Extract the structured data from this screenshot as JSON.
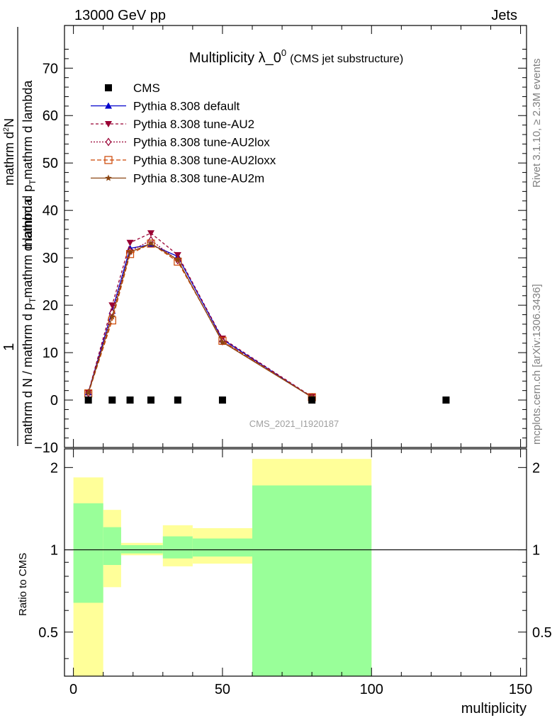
{
  "header": {
    "left": "13000 GeV pp",
    "right": "Jets"
  },
  "side_labels": {
    "rivet": "Rivet 3.1.10, ≥ 2.3M events",
    "mcplots": "mcplots.cern.ch [arXiv:1306.3436]"
  },
  "chart_data": {
    "type": "line",
    "title_main": "Multiplicity λ_0",
    "title_sup": "0",
    "title_sub": "(CMS jet substructure)",
    "analysis_label": "CMS_2021_I1920187",
    "xlabel": "multiplicity",
    "ylabel_numer": "1",
    "ylabel_denom_main": "mathrm d N / mathrm d p",
    "ylabel_denom_sub": "T",
    "ylabel_denom_end": "mathrm d lambda",
    "ylabel_top_left": "mathrm d",
    "ylabel_top_sup": "2",
    "ylabel_top_right": "N",
    "ylabel_top2_main": "mathrm d p",
    "ylabel_top2_sub": "T",
    "ylabel_top2_end": "mathrm d lambda",
    "ratio_ylabel": "Ratio to CMS",
    "xlim": [
      -3,
      152
    ],
    "ylim": [
      -10,
      79
    ],
    "ratio_ylim": [
      0.345,
      2.34
    ],
    "x_ticks": [
      "0",
      "50",
      "100",
      "150"
    ],
    "y_ticks": [
      "−10",
      "0",
      "10",
      "20",
      "30",
      "40",
      "50",
      "60",
      "70"
    ],
    "ratio_ticks": [
      "0.5",
      "1",
      "2"
    ],
    "ratio_ticks_right": [
      "0.5",
      "1",
      "2"
    ],
    "cms": {
      "name": "CMS",
      "color": "#000000",
      "x": [
        5,
        13,
        19,
        26,
        35,
        50,
        80,
        125
      ],
      "y": [
        0,
        0,
        0,
        0,
        0,
        0,
        0,
        0
      ]
    },
    "series": [
      {
        "name": "Pythia 8.308 default",
        "color": "#0000cc",
        "dash": "",
        "marker": "triangle-up",
        "x": [
          5,
          13,
          19,
          26,
          35,
          50,
          80
        ],
        "y": [
          1.6,
          18.8,
          32.0,
          32.8,
          30.3,
          12.8,
          0.6
        ]
      },
      {
        "name": "Pythia 8.308 tune-AU2",
        "color": "#990033",
        "dash": "4,3",
        "marker": "triangle-down",
        "x": [
          5,
          13,
          19,
          26,
          35,
          50,
          80
        ],
        "y": [
          1.6,
          20.0,
          33.2,
          35.2,
          30.6,
          13.0,
          0.7
        ]
      },
      {
        "name": "Pythia 8.308 tune-AU2lox",
        "color": "#990033",
        "dash": "2,2",
        "marker": "diamond",
        "x": [
          5,
          13,
          19,
          26,
          35,
          50,
          80
        ],
        "y": [
          1.5,
          18.4,
          31.4,
          33.7,
          29.5,
          12.4,
          0.6
        ]
      },
      {
        "name": "Pythia 8.308 tune-AU2loxx",
        "color": "#cc4400",
        "dash": "6,3",
        "marker": "square-open",
        "x": [
          5,
          13,
          19,
          26,
          35,
          50,
          80
        ],
        "y": [
          1.4,
          16.8,
          30.8,
          33.0,
          29.2,
          12.5,
          0.6
        ]
      },
      {
        "name": "Pythia 8.308 tune-AU2m",
        "color": "#8b4513",
        "dash": "",
        "marker": "star",
        "x": [
          5,
          13,
          19,
          26,
          35,
          50,
          80
        ],
        "y": [
          1.5,
          17.6,
          31.2,
          33.0,
          29.6,
          12.2,
          0.6
        ]
      }
    ],
    "ratio_bands": [
      {
        "x0": 0,
        "x1": 10,
        "yellow": [
          0.345,
          1.84
        ],
        "green": [
          0.64,
          1.48
        ]
      },
      {
        "x0": 10,
        "x1": 16,
        "yellow": [
          0.73,
          1.4
        ],
        "green": [
          0.88,
          1.21
        ]
      },
      {
        "x0": 16,
        "x1": 30,
        "yellow": [
          0.955,
          1.06
        ],
        "green": [
          0.97,
          1.04
        ]
      },
      {
        "x0": 30,
        "x1": 40,
        "yellow": [
          0.87,
          1.23
        ],
        "green": [
          0.93,
          1.12
        ]
      },
      {
        "x0": 40,
        "x1": 60,
        "yellow": [
          0.89,
          1.2
        ],
        "green": [
          0.945,
          1.1
        ]
      },
      {
        "x0": 60,
        "x1": 100,
        "yellow": [
          0.345,
          2.15
        ],
        "green": [
          0.345,
          1.72
        ]
      }
    ],
    "colors": {
      "yellow": "#ffff99",
      "green": "#99ff99"
    }
  }
}
